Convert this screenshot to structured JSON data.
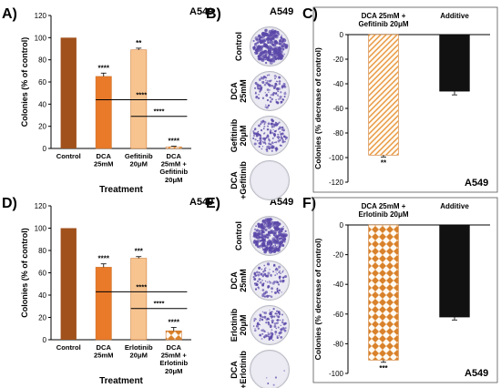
{
  "panels": [
    {
      "id": "A",
      "label": "A)",
      "title": "A549"
    },
    {
      "id": "B",
      "label": "B)",
      "title": "A549"
    },
    {
      "id": "C",
      "label": "C)",
      "title": "A549"
    },
    {
      "id": "D",
      "label": "D)",
      "title": "A549"
    },
    {
      "id": "E",
      "label": "E)",
      "title": "A549"
    },
    {
      "id": "F",
      "label": "F)",
      "title": "A549"
    }
  ],
  "colors": {
    "control": "#a0511c",
    "dca": "#e87a2a",
    "inhibitor": "#f7c490",
    "pattern_stroke": "#e8963c",
    "pattern_fill": "#f2c08a",
    "additive": "#111111",
    "colony_purple": "#5a47a8",
    "plate_bg": "#ecebf3"
  },
  "plates": {
    "B": [
      {
        "label": "Control",
        "density": 1.0
      },
      {
        "label": "DCA\n25mM",
        "density": 0.38
      },
      {
        "label": "Gefitinib\n20μM",
        "density": 0.55
      },
      {
        "label": "DCA\n+Gefitinib",
        "density": 0.0
      }
    ],
    "E": [
      {
        "label": "Control",
        "density": 1.0
      },
      {
        "label": "DCA\n25mM",
        "density": 0.4
      },
      {
        "label": "Erlotinib\n20μM",
        "density": 0.45
      },
      {
        "label": "DCA\n+Erlotinib",
        "density": 0.02
      }
    ]
  },
  "chart_data": [
    {
      "panel": "A",
      "type": "bar",
      "title": "A549",
      "ylabel": "Colonies (% of control)",
      "xlabel": "Treatment",
      "categories": [
        "Control",
        "DCA\n25mM",
        "Gefitinib\n20μM",
        "DCA\n25mM +\nGefitinib\n20μM"
      ],
      "values": [
        100,
        65,
        89,
        1.5
      ],
      "errors": [
        0,
        3,
        1.5,
        0.5
      ],
      "significance": [
        "",
        "****",
        "**",
        "****"
      ],
      "brackets": [
        {
          "from": 1,
          "to": 3,
          "y": 44,
          "label": "****"
        },
        {
          "from": 2,
          "to": 3,
          "y": 29,
          "label": "****"
        }
      ],
      "ylim": [
        0,
        120
      ],
      "yticks": [
        0,
        20,
        40,
        60,
        80,
        100,
        120
      ],
      "styles": [
        "control",
        "dca",
        "inhibitor",
        "pattern"
      ]
    },
    {
      "panel": "C",
      "type": "bar",
      "title": "A549",
      "ylabel": "Colonies (% decrease of control)",
      "categories": [
        "DCA 25mM +\nGefitinib 20μM",
        "Additive"
      ],
      "values": [
        -98,
        -46
      ],
      "errors": [
        1.5,
        3
      ],
      "significance": [
        "**",
        ""
      ],
      "ylim": [
        -120,
        0
      ],
      "yticks": [
        0,
        -20,
        -40,
        -60,
        -80,
        -100,
        -120
      ],
      "styles": [
        "pattern",
        "additive"
      ]
    },
    {
      "panel": "D",
      "type": "bar",
      "title": "A549",
      "ylabel": "Colonies (% of control)",
      "xlabel": "Treatment",
      "categories": [
        "Control",
        "DCA\n25mM",
        "Erlotinib\n20μM",
        "DCA\n25mM +\nErlotinib\n20μM"
      ],
      "values": [
        100,
        65,
        73,
        8
      ],
      "errors": [
        0,
        3,
        1.5,
        3
      ],
      "significance": [
        "",
        "****",
        "***",
        "****"
      ],
      "brackets": [
        {
          "from": 1,
          "to": 3,
          "y": 43,
          "label": "****"
        },
        {
          "from": 2,
          "to": 3,
          "y": 28,
          "label": "****"
        }
      ],
      "ylim": [
        0,
        120
      ],
      "yticks": [
        0,
        20,
        40,
        60,
        80,
        100,
        120
      ],
      "styles": [
        "control",
        "dca",
        "inhibitor",
        "diamond"
      ]
    },
    {
      "panel": "F",
      "type": "bar",
      "title": "A549",
      "ylabel": "Colonies (% decrease of control)",
      "categories": [
        "DCA 25mM +\nErlotinib 20μM",
        "Additive"
      ],
      "values": [
        -91,
        -62
      ],
      "errors": [
        1.5,
        2
      ],
      "significance": [
        "***",
        ""
      ],
      "ylim": [
        -100,
        0
      ],
      "yticks": [
        0,
        -20,
        -40,
        -60,
        -80,
        -100
      ],
      "styles": [
        "diamond",
        "additive"
      ]
    }
  ]
}
